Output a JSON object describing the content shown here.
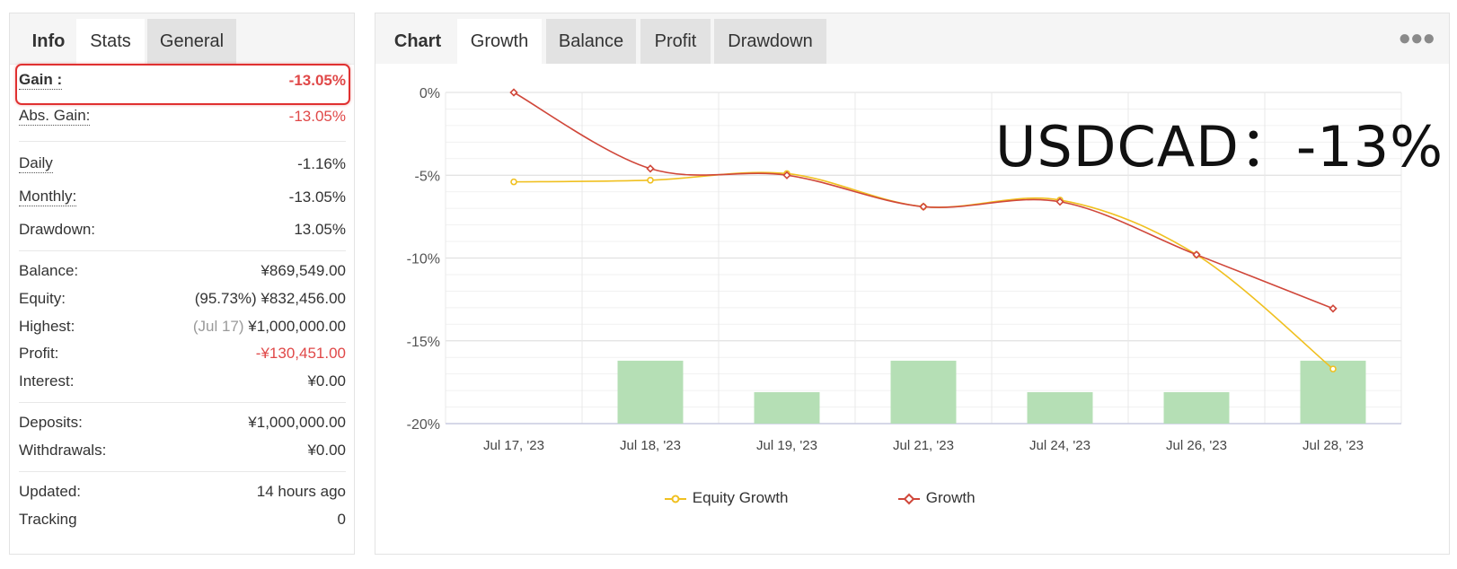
{
  "info_panel": {
    "tabs": [
      {
        "label": "Info"
      },
      {
        "label": "Stats"
      },
      {
        "label": "General"
      }
    ],
    "gain": {
      "label": "Gain :",
      "value": "-13.05%"
    },
    "abs_gain": {
      "label": "Abs. Gain:",
      "value": "-13.05%"
    },
    "daily": {
      "label": "Daily",
      "value": "-1.16%"
    },
    "monthly": {
      "label": "Monthly:",
      "value": "-13.05%"
    },
    "drawdown": {
      "label": "Drawdown:",
      "value": "13.05%"
    },
    "balance": {
      "label": "Balance:",
      "value": "¥869,549.00"
    },
    "equity": {
      "label": "Equity:",
      "prefix": "(95.73%)",
      "value": "¥832,456.00"
    },
    "highest": {
      "label": "Highest:",
      "prefix": "(Jul 17)",
      "value": "¥1,000,000.00"
    },
    "profit": {
      "label": "Profit:",
      "value": "-¥130,451.00"
    },
    "interest": {
      "label": "Interest:",
      "value": "¥0.00"
    },
    "deposits": {
      "label": "Deposits:",
      "value": "¥1,000,000.00"
    },
    "withdrawals": {
      "label": "Withdrawals:",
      "value": "¥0.00"
    },
    "updated": {
      "label": "Updated:",
      "value": "14 hours ago"
    },
    "tracking": {
      "label": "Tracking",
      "value": "0"
    }
  },
  "chart_panel": {
    "tabs": [
      {
        "label": "Chart"
      },
      {
        "label": "Growth"
      },
      {
        "label": "Balance"
      },
      {
        "label": "Profit"
      },
      {
        "label": "Drawdown"
      }
    ],
    "menu_icon": "more-dots-icon",
    "overlay_text": "USDCAD：-13%"
  },
  "colors": {
    "equity_growth": "#f0c020",
    "growth": "#d0473a",
    "bars": "#b5dfb5",
    "negative": "#e04848",
    "highlight_box": "#e03030"
  },
  "chart_data": {
    "type": "line",
    "categories": [
      "Jul 17, '23",
      "Jul 18, '23",
      "Jul 19, '23",
      "Jul 21, '23",
      "Jul 24, '23",
      "Jul 26, '23",
      "Jul 28, '23"
    ],
    "y_ticks": [
      "0%",
      "-5%",
      "-10%",
      "-15%",
      "-20%"
    ],
    "ylim": [
      -20,
      0
    ],
    "series": [
      {
        "name": "Equity Growth",
        "color": "#f0c020",
        "values": [
          -5.4,
          -5.3,
          -4.9,
          -6.9,
          -6.5,
          -9.8,
          -16.7
        ]
      },
      {
        "name": "Growth",
        "color": "#d0473a",
        "values": [
          0,
          -4.6,
          -5.0,
          -6.9,
          -6.6,
          -9.8,
          -13.05
        ]
      }
    ],
    "bars": {
      "values": [
        null,
        -16.2,
        -18.1,
        -16.2,
        -18.1,
        -18.1,
        -16.2
      ],
      "color": "#b5dfb5"
    },
    "legend_position": "bottom",
    "grid": true
  }
}
